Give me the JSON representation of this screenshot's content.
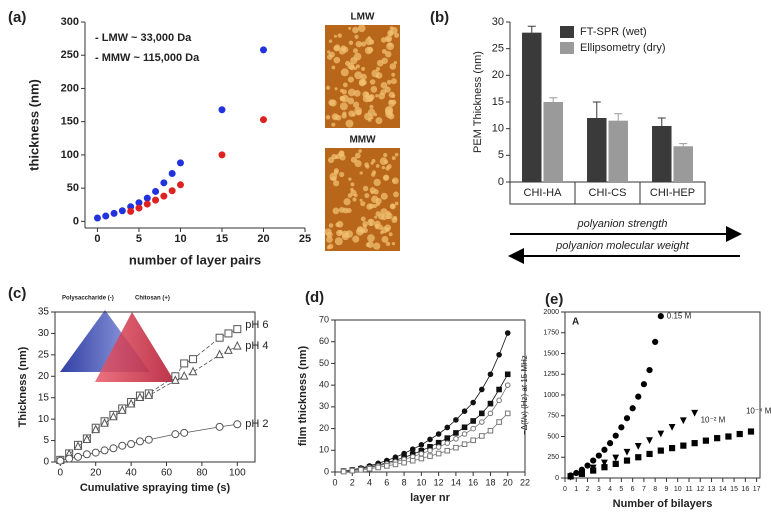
{
  "images": [
    {
      "label": "LMW",
      "color": "#2233cc"
    },
    {
      "label": "MMW",
      "color": "#cc2222"
    }
  ],
  "chart_data": [
    {
      "type": "scatter",
      "panel": "(a)",
      "xlabel": "number of layer pairs",
      "ylabel": "thickness (nm)",
      "xlim": [
        -1.5,
        25
      ],
      "ylim": [
        -10,
        300
      ],
      "xticks": [
        0,
        5,
        10,
        15,
        20,
        25
      ],
      "yticks": [
        0,
        50,
        100,
        150,
        200,
        250,
        300
      ],
      "annotations": [
        {
          "text": "- LMW ~ 33,000 Da",
          "color": "#2233dd"
        },
        {
          "text": "- MMW ~ 115,000 Da",
          "color": "#dd2222"
        }
      ],
      "series": [
        {
          "color": "#2233dd",
          "marker": "circle",
          "filled": true,
          "x": [
            0,
            1,
            2,
            3,
            4,
            5,
            6,
            7,
            8,
            9,
            10,
            15,
            20
          ],
          "values": [
            5,
            8,
            12,
            16,
            22,
            28,
            35,
            45,
            58,
            72,
            88,
            168,
            258
          ]
        },
        {
          "color": "#dd2222",
          "marker": "circle",
          "filled": true,
          "x": [
            4,
            5,
            6,
            7,
            8,
            9,
            10,
            15,
            20
          ],
          "values": [
            15,
            20,
            26,
            32,
            38,
            46,
            55,
            100,
            153
          ]
        }
      ]
    },
    {
      "type": "bar",
      "panel": "(b)",
      "ylabel": "PEM Thickness (nm)",
      "ylim": [
        0,
        30
      ],
      "yticks": [
        0,
        5,
        10,
        15,
        20,
        25,
        30
      ],
      "categories": [
        "CHI-HA",
        "CHI-CS",
        "CHI-HEP"
      ],
      "annotations": [
        {
          "text": "polyanion strength"
        },
        {
          "text": "polyanion molecular weight"
        }
      ],
      "series": [
        {
          "name": "FT-SPR (wet)",
          "color": "#3a3a3a",
          "values": [
            28,
            12,
            10.5
          ],
          "errors": [
            1.2,
            3,
            1.5
          ]
        },
        {
          "name": "Ellipsometry (dry)",
          "color": "#9a9a9a",
          "values": [
            15,
            11.5,
            6.7
          ],
          "errors": [
            0.8,
            1.3,
            0.5
          ]
        }
      ]
    },
    {
      "type": "line",
      "panel": "(c)",
      "xlabel": "Cumulative spraying time (s)",
      "ylabel": "Thickness (nm)",
      "xlim": [
        -3,
        110
      ],
      "ylim": [
        0,
        35
      ],
      "xticks": [
        0,
        20,
        40,
        60,
        80,
        100
      ],
      "yticks": [
        0,
        5,
        10,
        15,
        20,
        25,
        30,
        35
      ],
      "annotations": [
        {
          "text": "Polysaccharide (-)"
        },
        {
          "text": "Chitosan (+)"
        }
      ],
      "series": [
        {
          "name": "pH 6",
          "color": "#555",
          "marker": "square",
          "filled": false,
          "dash": true,
          "x": [
            0,
            5,
            10,
            15,
            20,
            25,
            30,
            35,
            40,
            45,
            50,
            65,
            70,
            75,
            90,
            95,
            100
          ],
          "values": [
            0.5,
            2,
            4,
            5.5,
            8,
            9.5,
            11,
            12.5,
            14,
            15.5,
            16,
            20,
            23,
            24,
            29,
            30,
            31
          ]
        },
        {
          "name": "pH 4",
          "color": "#555",
          "marker": "triangle",
          "filled": false,
          "dash": true,
          "x": [
            0,
            5,
            10,
            15,
            20,
            25,
            30,
            35,
            40,
            45,
            50,
            65,
            70,
            75,
            90,
            95,
            100
          ],
          "values": [
            0.3,
            1.8,
            3.6,
            5.2,
            7.5,
            9,
            10.5,
            12,
            13.5,
            15,
            15.5,
            19,
            20,
            21,
            25,
            26,
            27
          ]
        },
        {
          "name": "pH 2",
          "color": "#555",
          "marker": "circle",
          "filled": false,
          "dash": false,
          "x": [
            0,
            5,
            10,
            15,
            20,
            25,
            30,
            35,
            40,
            45,
            50,
            65,
            70,
            90,
            100
          ],
          "values": [
            0.3,
            0.8,
            1.2,
            1.8,
            2.2,
            2.7,
            3.2,
            3.8,
            4.2,
            4.8,
            5.2,
            6.5,
            6.8,
            8.2,
            8.8
          ]
        }
      ]
    },
    {
      "type": "line",
      "panel": "(d)",
      "xlabel": "layer nr",
      "ylabel": "film thickness (nm)",
      "xlim": [
        0,
        22
      ],
      "ylim": [
        0,
        70
      ],
      "xticks": [
        0,
        2,
        4,
        6,
        8,
        10,
        12,
        14,
        16,
        18,
        20,
        22
      ],
      "yticks": [
        0,
        10,
        20,
        30,
        40,
        50,
        60,
        70
      ],
      "series": [
        {
          "color": "#111",
          "marker": "circle",
          "filled": true,
          "x": [
            1,
            2,
            3,
            4,
            5,
            6,
            7,
            8,
            9,
            10,
            11,
            12,
            13,
            14,
            15,
            16,
            17,
            18,
            19,
            20
          ],
          "values": [
            0.5,
            1,
            1.8,
            2.8,
            4,
            5.3,
            6.8,
            8.5,
            10.5,
            12.5,
            15,
            17.5,
            20.5,
            24,
            28,
            32,
            38,
            45,
            54,
            64
          ]
        },
        {
          "color": "#111",
          "marker": "square",
          "filled": true,
          "x": [
            1,
            2,
            3,
            4,
            5,
            6,
            7,
            8,
            9,
            10,
            11,
            12,
            13,
            14,
            15,
            16,
            17,
            18,
            19,
            20
          ],
          "values": [
            0.4,
            0.9,
            1.5,
            2.3,
            3.2,
            4.2,
            5.4,
            6.7,
            8.2,
            9.8,
            11.6,
            13.5,
            15.6,
            18,
            20.6,
            23.5,
            27,
            31.5,
            38,
            45
          ]
        },
        {
          "color": "#777",
          "marker": "circle",
          "filled": false,
          "x": [
            1,
            2,
            3,
            4,
            5,
            6,
            7,
            8,
            9,
            10,
            11,
            12,
            13,
            14,
            15,
            16,
            17,
            18,
            19,
            20
          ],
          "values": [
            0.3,
            0.8,
            1.3,
            2,
            2.8,
            3.7,
            4.7,
            5.8,
            7,
            8.4,
            9.9,
            11.5,
            13.3,
            15.3,
            17.5,
            20,
            23,
            27,
            33,
            40
          ]
        },
        {
          "color": "#777",
          "marker": "square",
          "filled": false,
          "x": [
            1,
            2,
            3,
            4,
            5,
            6,
            7,
            8,
            9,
            10,
            11,
            12,
            13,
            14,
            15,
            16,
            17,
            18,
            19,
            20
          ],
          "values": [
            0.2,
            0.6,
            1,
            1.5,
            2.1,
            2.8,
            3.5,
            4.3,
            5.2,
            6.2,
            7.3,
            8.5,
            9.8,
            11.2,
            12.8,
            14.6,
            16.6,
            19,
            23,
            27
          ]
        }
      ]
    },
    {
      "type": "scatter",
      "panel": "(e)",
      "xlabel": "Number of bilayers",
      "ylabel": "−Δ(f/ν) (Hz) at 15 MHz",
      "xlim": [
        0,
        17.3
      ],
      "ylim": [
        0,
        2000
      ],
      "xticks": [
        0,
        1,
        2,
        3,
        4,
        5,
        6,
        7,
        8,
        9,
        10,
        11,
        12,
        13,
        14,
        15,
        16,
        17
      ],
      "yticks": [
        0,
        250,
        500,
        750,
        1000,
        1250,
        1500,
        1750,
        2000
      ],
      "annotations": [
        {
          "text": "A"
        }
      ],
      "series": [
        {
          "name": "0.15 M",
          "color": "#000",
          "marker": "circle",
          "filled": true,
          "x": [
            0.5,
            1,
            1.5,
            2,
            2.5,
            3,
            3.5,
            4,
            4.5,
            5,
            5.5,
            6,
            6.5,
            7,
            7.5,
            8,
            8.5
          ],
          "values": [
            30,
            60,
            100,
            150,
            210,
            270,
            340,
            420,
            510,
            610,
            720,
            840,
            980,
            1130,
            1300,
            1640,
            1950
          ]
        },
        {
          "name": "10⁻² M",
          "color": "#000",
          "marker": "triangle-down",
          "filled": true,
          "x": [
            0.5,
            1.5,
            2.5,
            3.5,
            4.5,
            5.5,
            6.5,
            7.5,
            8.5,
            9.5,
            10.5,
            11.5
          ],
          "values": [
            20,
            70,
            130,
            190,
            250,
            320,
            390,
            460,
            540,
            620,
            700,
            790
          ]
        },
        {
          "name": "10⁻⁴ M",
          "color": "#000",
          "marker": "square",
          "filled": true,
          "x": [
            0.5,
            1.5,
            2.5,
            3.5,
            4.5,
            5.5,
            6.5,
            7.5,
            8.5,
            9.5,
            10.5,
            11.5,
            12.5,
            13.5,
            14.5,
            15.5,
            16.5
          ],
          "values": [
            20,
            50,
            90,
            130,
            170,
            210,
            250,
            290,
            330,
            360,
            390,
            420,
            450,
            480,
            500,
            530,
            560
          ]
        }
      ]
    }
  ]
}
